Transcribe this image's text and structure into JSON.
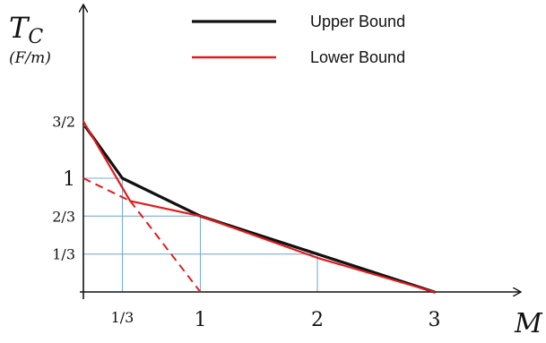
{
  "chart_data": {
    "type": "line",
    "x_axis": {
      "label": "M",
      "range": [
        0,
        3.1
      ],
      "ticks": [
        {
          "value": 0.3333,
          "label": "1/3",
          "small": true
        },
        {
          "value": 1,
          "label": "1",
          "small": false
        },
        {
          "value": 2,
          "label": "2",
          "small": false
        },
        {
          "value": 3,
          "label": "3",
          "small": false
        }
      ]
    },
    "y_axis": {
      "label": "T",
      "label_subscript": "C",
      "unit": "(F/m)",
      "range": [
        0,
        1.75
      ],
      "ticks": [
        {
          "value": 1.5,
          "label": "3/2",
          "small": true
        },
        {
          "value": 1,
          "label": "1",
          "small": false
        },
        {
          "value": 0.6667,
          "label": "2/3",
          "small": true
        },
        {
          "value": 0.3333,
          "label": "1/3",
          "small": true
        }
      ]
    },
    "series": [
      {
        "name": "Upper Bound",
        "color": "#111111",
        "points": [
          [
            0.02,
            1.45
          ],
          [
            0.3333,
            1.0
          ],
          [
            1.0,
            0.6667
          ],
          [
            2.0,
            0.3333
          ],
          [
            3.0,
            0.0
          ]
        ]
      },
      {
        "name": "Lower Bound",
        "color": "#e31a1c",
        "points": [
          [
            0.0,
            1.5
          ],
          [
            0.4,
            0.8
          ],
          [
            1.0,
            0.6667
          ],
          [
            2.0,
            0.3
          ],
          [
            3.0,
            0.0
          ]
        ]
      }
    ],
    "dashed_lines": [
      {
        "color": "#e31a1c",
        "points": [
          [
            0.0,
            1.0
          ],
          [
            0.4,
            0.8
          ]
        ]
      },
      {
        "color": "#e31a1c",
        "points": [
          [
            0.4,
            0.8
          ],
          [
            1.0,
            0.0
          ]
        ]
      }
    ],
    "guide_lines": {
      "color": "#7aaed6",
      "vertical": [
        {
          "x": 0.3333,
          "y_top": 1.0
        },
        {
          "x": 1.0,
          "y_top": 0.6667
        },
        {
          "x": 2.0,
          "y_top": 0.3333
        }
      ],
      "horizontal": [
        {
          "y": 1.0,
          "x_end": 0.3333
        },
        {
          "y": 0.6667,
          "x_end": 1.0
        },
        {
          "y": 0.3333,
          "x_end": 2.0
        }
      ]
    },
    "legend": {
      "placement": "top-right",
      "entries": [
        {
          "label": "Upper Bound",
          "color": "#111111"
        },
        {
          "label": "Lower Bound",
          "color": "#e31a1c"
        }
      ]
    },
    "grid": false
  }
}
